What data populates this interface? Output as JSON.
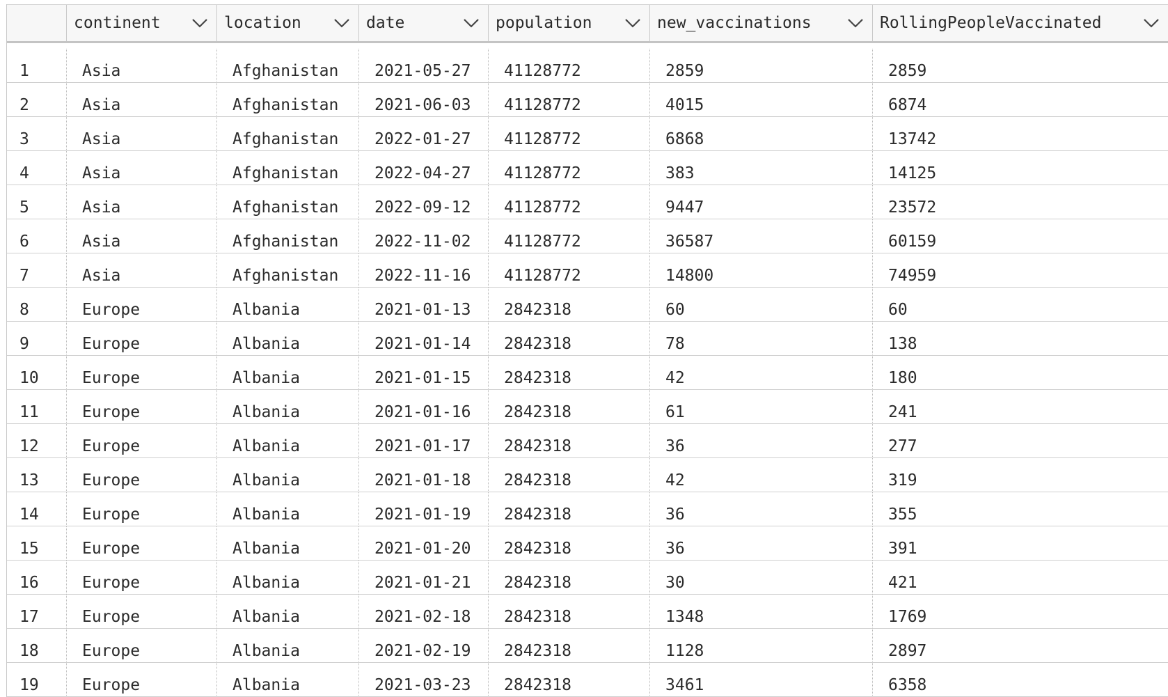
{
  "columns": [
    "continent",
    "location",
    "date",
    "population",
    "new_vaccinations",
    "RollingPeopleVaccinated"
  ],
  "rows": [
    [
      "1",
      "Asia",
      "Afghanistan",
      "2021-05-27",
      "41128772",
      "2859",
      "2859"
    ],
    [
      "2",
      "Asia",
      "Afghanistan",
      "2021-06-03",
      "41128772",
      "4015",
      "6874"
    ],
    [
      "3",
      "Asia",
      "Afghanistan",
      "2022-01-27",
      "41128772",
      "6868",
      "13742"
    ],
    [
      "4",
      "Asia",
      "Afghanistan",
      "2022-04-27",
      "41128772",
      "383",
      "14125"
    ],
    [
      "5",
      "Asia",
      "Afghanistan",
      "2022-09-12",
      "41128772",
      "9447",
      "23572"
    ],
    [
      "6",
      "Asia",
      "Afghanistan",
      "2022-11-02",
      "41128772",
      "36587",
      "60159"
    ],
    [
      "7",
      "Asia",
      "Afghanistan",
      "2022-11-16",
      "41128772",
      "14800",
      "74959"
    ],
    [
      "8",
      "Europe",
      "Albania",
      "2021-01-13",
      "2842318",
      "60",
      "60"
    ],
    [
      "9",
      "Europe",
      "Albania",
      "2021-01-14",
      "2842318",
      "78",
      "138"
    ],
    [
      "10",
      "Europe",
      "Albania",
      "2021-01-15",
      "2842318",
      "42",
      "180"
    ],
    [
      "11",
      "Europe",
      "Albania",
      "2021-01-16",
      "2842318",
      "61",
      "241"
    ],
    [
      "12",
      "Europe",
      "Albania",
      "2021-01-17",
      "2842318",
      "36",
      "277"
    ],
    [
      "13",
      "Europe",
      "Albania",
      "2021-01-18",
      "2842318",
      "42",
      "319"
    ],
    [
      "14",
      "Europe",
      "Albania",
      "2021-01-19",
      "2842318",
      "36",
      "355"
    ],
    [
      "15",
      "Europe",
      "Albania",
      "2021-01-20",
      "2842318",
      "36",
      "391"
    ],
    [
      "16",
      "Europe",
      "Albania",
      "2021-01-21",
      "2842318",
      "30",
      "421"
    ],
    [
      "17",
      "Europe",
      "Albania",
      "2021-02-18",
      "2842318",
      "1348",
      "1769"
    ],
    [
      "18",
      "Europe",
      "Albania",
      "2021-02-19",
      "2842318",
      "1128",
      "2897"
    ],
    [
      "19",
      "Europe",
      "Albania",
      "2021-03-23",
      "2842318",
      "3461",
      "6358"
    ]
  ]
}
